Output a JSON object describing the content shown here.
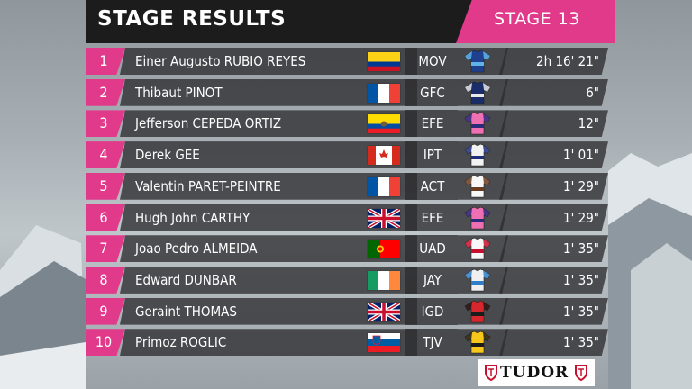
{
  "header": {
    "title": "STAGE RESULTS",
    "stage": "STAGE 13"
  },
  "colors": {
    "accent": "#e23a8a",
    "row_bg": "#2d2d30",
    "header_bg": "#1c1c1c"
  },
  "rows": [
    {
      "rank": "1",
      "name": "Einer Augusto RUBIO REYES",
      "flag": "colombia-flag",
      "team": "MOV",
      "jersey": "movistar-jersey-icon",
      "time": "2h 16' 21\""
    },
    {
      "rank": "2",
      "name": "Thibaut PINOT",
      "flag": "france-flag",
      "team": "GFC",
      "jersey": "groupama-jersey-icon",
      "time": "6\""
    },
    {
      "rank": "3",
      "name": "Jefferson CEPEDA ORTIZ",
      "flag": "ecuador-flag",
      "team": "EFE",
      "jersey": "ef-jersey-icon",
      "time": "12\""
    },
    {
      "rank": "4",
      "name": "Derek GEE",
      "flag": "canada-flag",
      "team": "IPT",
      "jersey": "israel-jersey-icon",
      "time": "1' 01\""
    },
    {
      "rank": "5",
      "name": "Valentin PARET-PEINTRE",
      "flag": "france-flag",
      "team": "ACT",
      "jersey": "ag2r-jersey-icon",
      "time": "1' 29\""
    },
    {
      "rank": "6",
      "name": "Hugh John CARTHY",
      "flag": "uk-flag",
      "team": "EFE",
      "jersey": "ef-jersey-icon",
      "time": "1' 29\""
    },
    {
      "rank": "7",
      "name": "Joao Pedro ALMEIDA",
      "flag": "portugal-flag",
      "team": "UAD",
      "jersey": "uae-jersey-icon",
      "time": "1' 35\""
    },
    {
      "rank": "8",
      "name": "Edward DUNBAR",
      "flag": "ireland-flag",
      "team": "JAY",
      "jersey": "jayco-jersey-icon",
      "time": "1' 35\""
    },
    {
      "rank": "9",
      "name": "Geraint THOMAS",
      "flag": "uk-flag",
      "team": "IGD",
      "jersey": "ineos-jersey-icon",
      "time": "1' 35\""
    },
    {
      "rank": "10",
      "name": "Primoz ROGLIC",
      "flag": "slovenia-flag",
      "team": "TJV",
      "jersey": "jumbo-jersey-icon",
      "time": "1' 35\""
    }
  ],
  "sponsor": {
    "name": "TUDOR"
  }
}
